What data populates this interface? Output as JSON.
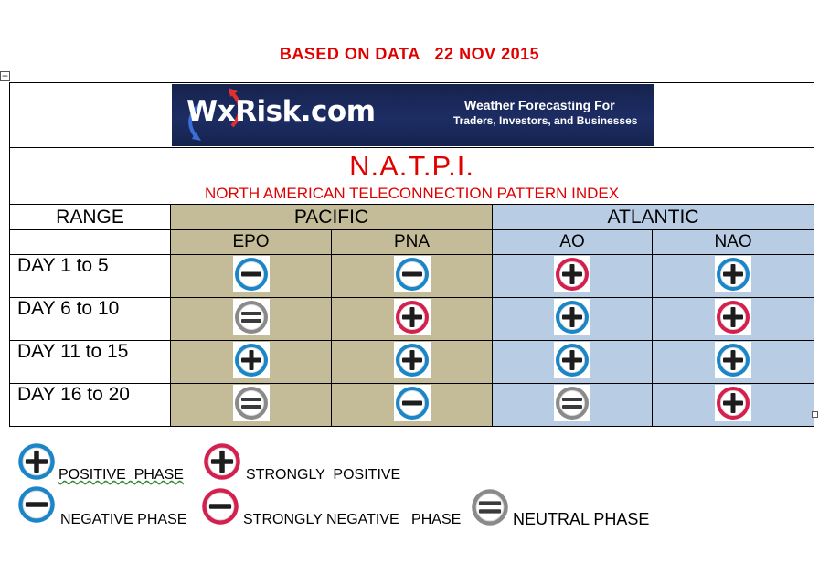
{
  "header": {
    "date_line": "BASED ON DATA   22 NOV 2015"
  },
  "banner": {
    "logo": "WxRisk.com",
    "tagline_line1": "Weather Forecasting For",
    "tagline_line2": "Traders, Investors, and Businesses"
  },
  "title": {
    "main": "N.A.T.P.I.",
    "subtitle": "NORTH AMERICAN TELECONNECTION PATTERN INDEX"
  },
  "table": {
    "range_label": "RANGE",
    "group_pacific": "PACIFIC",
    "group_atlantic": "ATLANTIC",
    "columns": [
      "EPO",
      "PNA",
      "AO",
      "NAO"
    ],
    "rows": [
      {
        "label": "DAY 1 to 5",
        "phases": [
          "negative",
          "negative",
          "strongly-positive",
          "positive"
        ]
      },
      {
        "label": "DAY 6 to 10",
        "phases": [
          "neutral",
          "strongly-positive",
          "positive",
          "strongly-positive"
        ]
      },
      {
        "label": "DAY 11 to 15",
        "phases": [
          "positive",
          "positive",
          "positive",
          "positive"
        ]
      },
      {
        "label": "DAY 16 to 20",
        "phases": [
          "neutral",
          "negative",
          "neutral",
          "strongly-positive"
        ]
      }
    ]
  },
  "legend": {
    "positive": "POSITIVE  PHASE",
    "strongly_positive": "STRONGLY  POSITIVE",
    "negative": "NEGATIVE PHASE",
    "strongly_negative": "STRONGLY NEGATIVE   PHASE",
    "neutral": "NEUTRAL PHASE"
  },
  "colors": {
    "title_red": "#e00000",
    "pacific_fill": "#c4bc98",
    "atlantic_fill": "#b8cce4",
    "icon_blue": "#1a86c8",
    "icon_red": "#d41f4f",
    "icon_gray": "#8a8a8a"
  }
}
